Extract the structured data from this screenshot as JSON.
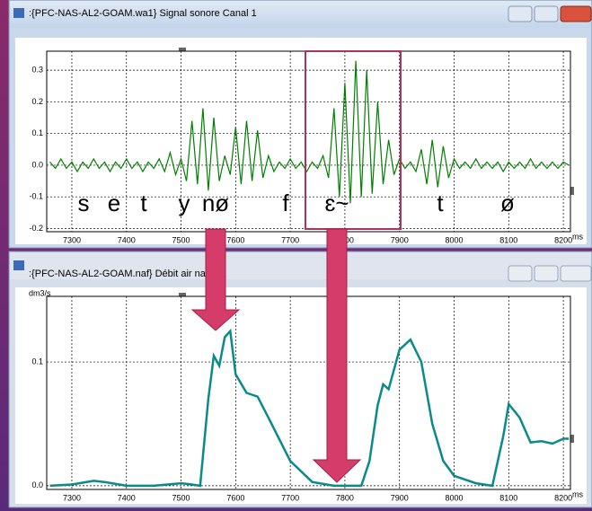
{
  "window_titles": [
    ":{PFC-NAS-AL2-GOAM.wa1} Signal sonore Canal 1",
    ":{PFC-NAS-AL2-GOAM.naf} Débit air nasal"
  ],
  "chart_data": [
    {
      "type": "line",
      "x": [
        7260,
        7270,
        7280,
        7290,
        7300,
        7310,
        7320,
        7330,
        7340,
        7350,
        7360,
        7370,
        7380,
        7390,
        7400,
        7410,
        7420,
        7430,
        7440,
        7450,
        7460,
        7470,
        7480,
        7490,
        7500,
        7510,
        7520,
        7530,
        7540,
        7550,
        7560,
        7570,
        7580,
        7590,
        7600,
        7610,
        7620,
        7630,
        7640,
        7650,
        7660,
        7670,
        7680,
        7690,
        7700,
        7710,
        7720,
        7730,
        7740,
        7750,
        7760,
        7770,
        7780,
        7790,
        7800,
        7810,
        7820,
        7830,
        7840,
        7850,
        7860,
        7870,
        7880,
        7890,
        7900,
        7910,
        7920,
        7930,
        7940,
        7950,
        7960,
        7970,
        7980,
        7990,
        8000,
        8010,
        8020,
        8030,
        8040,
        8050,
        8060,
        8070,
        8080,
        8090,
        8100,
        8110,
        8120,
        8130,
        8140,
        8150,
        8160,
        8170,
        8180,
        8190,
        8200,
        8210
      ],
      "series": [
        {
          "color": "#008000",
          "values": [
            0.01,
            -0.01,
            0.02,
            -0.01,
            0.01,
            -0.02,
            0.01,
            -0.01,
            0.02,
            -0.01,
            0.01,
            -0.02,
            0.01,
            -0.01,
            0.02,
            -0.01,
            0.01,
            -0.02,
            0.01,
            -0.01,
            0.02,
            -0.02,
            0.04,
            -0.03,
            0.02,
            -0.05,
            0.14,
            -0.06,
            0.18,
            -0.08,
            0.15,
            -0.05,
            0.03,
            -0.03,
            0.12,
            -0.06,
            0.14,
            -0.05,
            0.11,
            -0.04,
            0.03,
            -0.02,
            0.01,
            -0.01,
            0.02,
            -0.01,
            0.01,
            -0.02,
            0.01,
            -0.01,
            0.03,
            -0.04,
            0.18,
            -0.1,
            0.26,
            -0.12,
            0.33,
            -0.1,
            0.3,
            -0.09,
            0.2,
            -0.06,
            0.08,
            -0.03,
            0.02,
            -0.01,
            0.01,
            -0.02,
            0.05,
            -0.06,
            0.08,
            -0.07,
            0.06,
            -0.04,
            0.02,
            -0.01,
            0.01,
            -0.01,
            0.02,
            -0.01,
            0.01,
            -0.01,
            0.01,
            -0.02,
            0.01,
            -0.01,
            0.01,
            -0.01,
            0.02,
            -0.01,
            0.01,
            -0.01,
            0.01,
            -0.01,
            0.01,
            0.0
          ]
        }
      ],
      "xlim": [
        7254,
        8213
      ],
      "ylim": [
        -0.21,
        0.36
      ],
      "xticks": [
        7300,
        7400,
        7500,
        7600,
        7700,
        7800,
        7900,
        8000,
        8100,
        8200
      ],
      "yticks": [
        -0.2,
        -0.1,
        {
          "value": 0,
          "label": "0.0"
        },
        0.1,
        0.2,
        0.3
      ],
      "x_unit": "ms",
      "grid": true,
      "annotations": [
        "s",
        "e",
        "t",
        "y",
        "nø",
        "f",
        "ɛ~",
        "t",
        "ø"
      ]
    },
    {
      "type": "line",
      "x": [
        7260,
        7300,
        7340,
        7360,
        7400,
        7450,
        7500,
        7520,
        7535,
        7550,
        7560,
        7570,
        7580,
        7590,
        7600,
        7620,
        7640,
        7660,
        7700,
        7740,
        7780,
        7830,
        7845,
        7860,
        7870,
        7880,
        7900,
        7920,
        7940,
        7960,
        7980,
        8000,
        8040,
        8070,
        8090,
        8100,
        8120,
        8140,
        8160,
        8180,
        8200,
        8210
      ],
      "series": [
        {
          "color": "#0a8a8a",
          "values": [
            0,
            0.001,
            0.004,
            0.003,
            0,
            0,
            0.002,
            0.001,
            0,
            0.07,
            0.105,
            0.097,
            0.12,
            0.125,
            0.09,
            0.075,
            0.072,
            0.055,
            0.02,
            0.003,
            0,
            0,
            0.02,
            0.065,
            0.082,
            0.078,
            0.11,
            0.118,
            0.1,
            0.05,
            0.02,
            0.008,
            0.002,
            0,
            0.04,
            0.066,
            0.055,
            0.035,
            0.036,
            0.034,
            0.038,
            0.038
          ]
        }
      ],
      "xlim": [
        7254,
        8213
      ],
      "ylim": [
        -0.003,
        0.153
      ],
      "xticks": [
        7300,
        7400,
        7500,
        7600,
        7700,
        7800,
        7900,
        8000,
        8100,
        8200
      ],
      "yticks": [
        {
          "value": 0,
          "label": "0.0"
        },
        0.1
      ],
      "x_unit": "ms",
      "y_unit": "dm3/s",
      "grid": true
    }
  ]
}
